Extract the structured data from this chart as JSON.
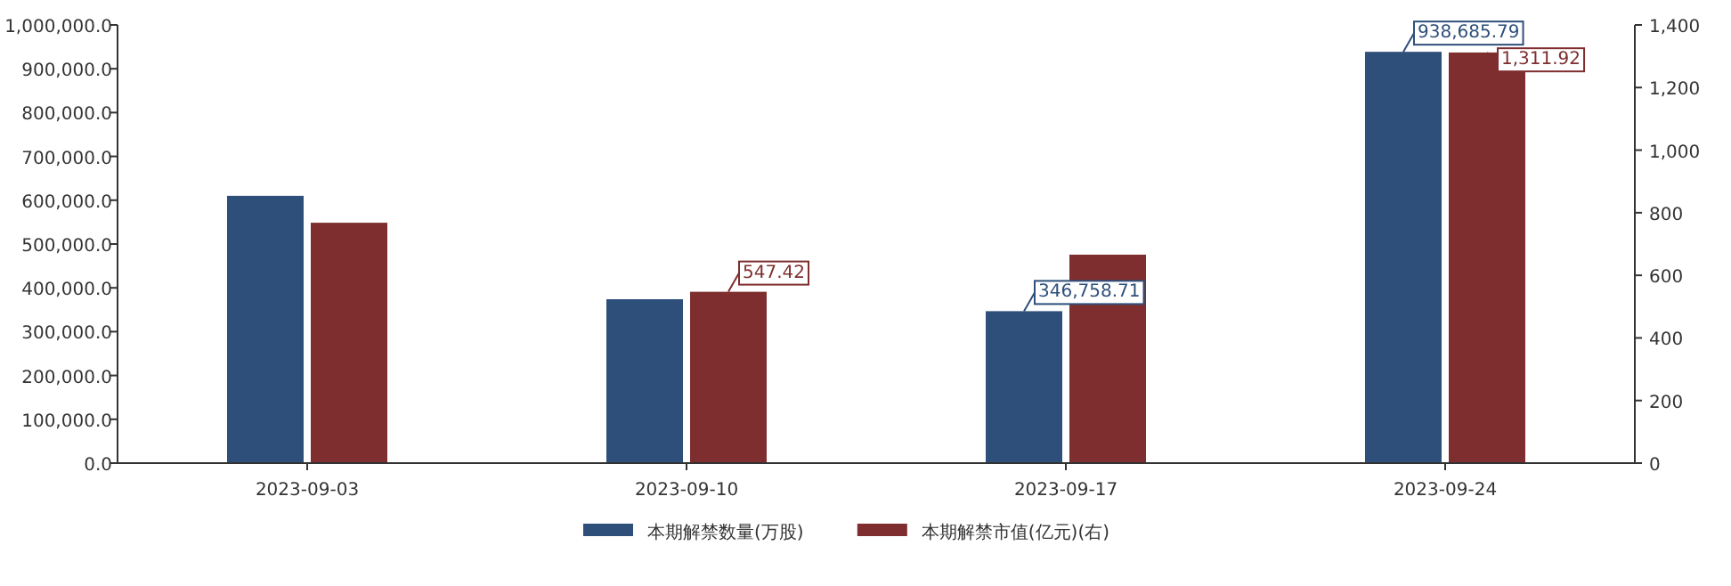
{
  "chart_data": {
    "type": "bar",
    "categories": [
      "2023-09-03",
      "2023-09-10",
      "2023-09-17",
      "2023-09-24"
    ],
    "series": [
      {
        "name": "本期解禁数量(万股)",
        "color": "#2e4f7a",
        "values": [
          610000,
          374000,
          346758.71,
          938685.79
        ],
        "value_labels": [
          null,
          null,
          "346,758.71",
          "938,685.79"
        ]
      },
      {
        "name": "本期解禁市值(亿元)(右)",
        "color": "#7e2e2e",
        "axis": "y2",
        "values": [
          768,
          547.42,
          666,
          1311.92
        ],
        "value_labels": [
          null,
          "547.42",
          null,
          "1,311.92"
        ]
      }
    ],
    "ylim": [
      0,
      1000000
    ],
    "yticks": [
      {
        "value": 0,
        "label": "0.0"
      },
      {
        "value": 100000,
        "label": "100,000.0"
      },
      {
        "value": 200000,
        "label": "200,000.0"
      },
      {
        "value": 300000,
        "label": "300,000.0"
      },
      {
        "value": 400000,
        "label": "400,000.0"
      },
      {
        "value": 500000,
        "label": "500,000.0"
      },
      {
        "value": 600000,
        "label": "600,000.0"
      },
      {
        "value": 700000,
        "label": "700,000.0"
      },
      {
        "value": 800000,
        "label": "800,000.0"
      },
      {
        "value": 900000,
        "label": "900,000.0"
      },
      {
        "value": 1000000,
        "label": "1,000,000.0"
      }
    ],
    "y2lim": [
      0,
      1400
    ],
    "y2ticks": [
      0,
      200,
      400,
      600,
      800,
      {
        "value": 1000,
        "label": "1,000"
      },
      {
        "value": 1200,
        "label": "1,200"
      },
      {
        "value": 1400,
        "label": "1,400"
      }
    ],
    "grid": false,
    "legend": "bottom"
  }
}
